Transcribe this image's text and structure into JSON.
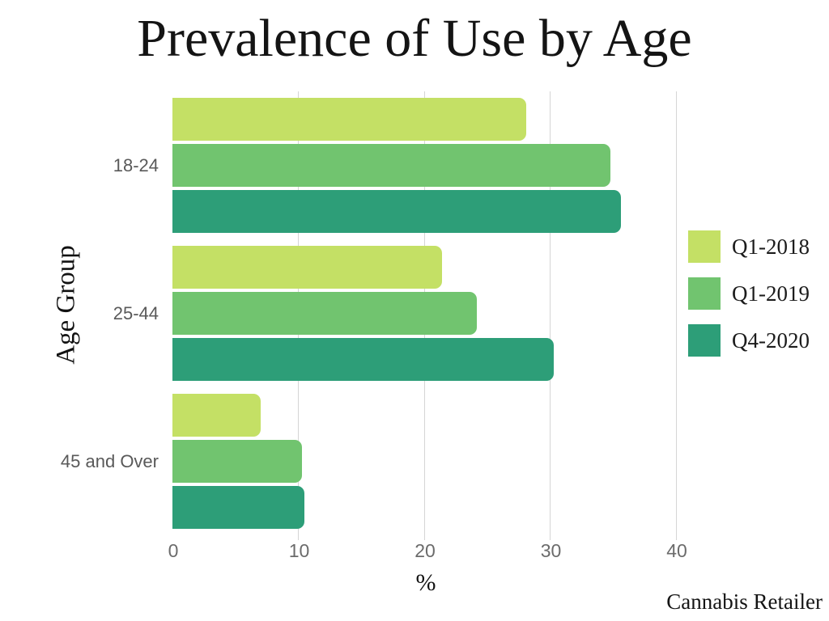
{
  "title": "Prevalence of Use by Age",
  "watermark": "Cannabis Retailer",
  "colors": {
    "background": "#ffffff",
    "gridline": "#d5d5d5",
    "tick_text": "#6b6b6b",
    "category_text": "#595959",
    "title_text": "#141414"
  },
  "chart_data": {
    "type": "bar",
    "orientation": "horizontal",
    "title": "Prevalence of Use by Age",
    "xlabel": "%",
    "ylabel": "Age Group",
    "categories": [
      "18-24",
      "25-44",
      "45 and Over"
    ],
    "series": [
      {
        "name": "Q1-2018",
        "color": "#c4e065",
        "values": [
          28.1,
          21.4,
          7.0
        ]
      },
      {
        "name": "Q1-2019",
        "color": "#71c46f",
        "values": [
          34.8,
          24.2,
          10.3
        ]
      },
      {
        "name": "Q4-2020",
        "color": "#2d9e78",
        "values": [
          35.6,
          30.3,
          10.5
        ]
      }
    ],
    "xlim": [
      0,
      40
    ],
    "x_ticks": [
      "0",
      "10",
      "20",
      "30",
      "40"
    ],
    "grid": "vertical",
    "legend_position": "right"
  }
}
